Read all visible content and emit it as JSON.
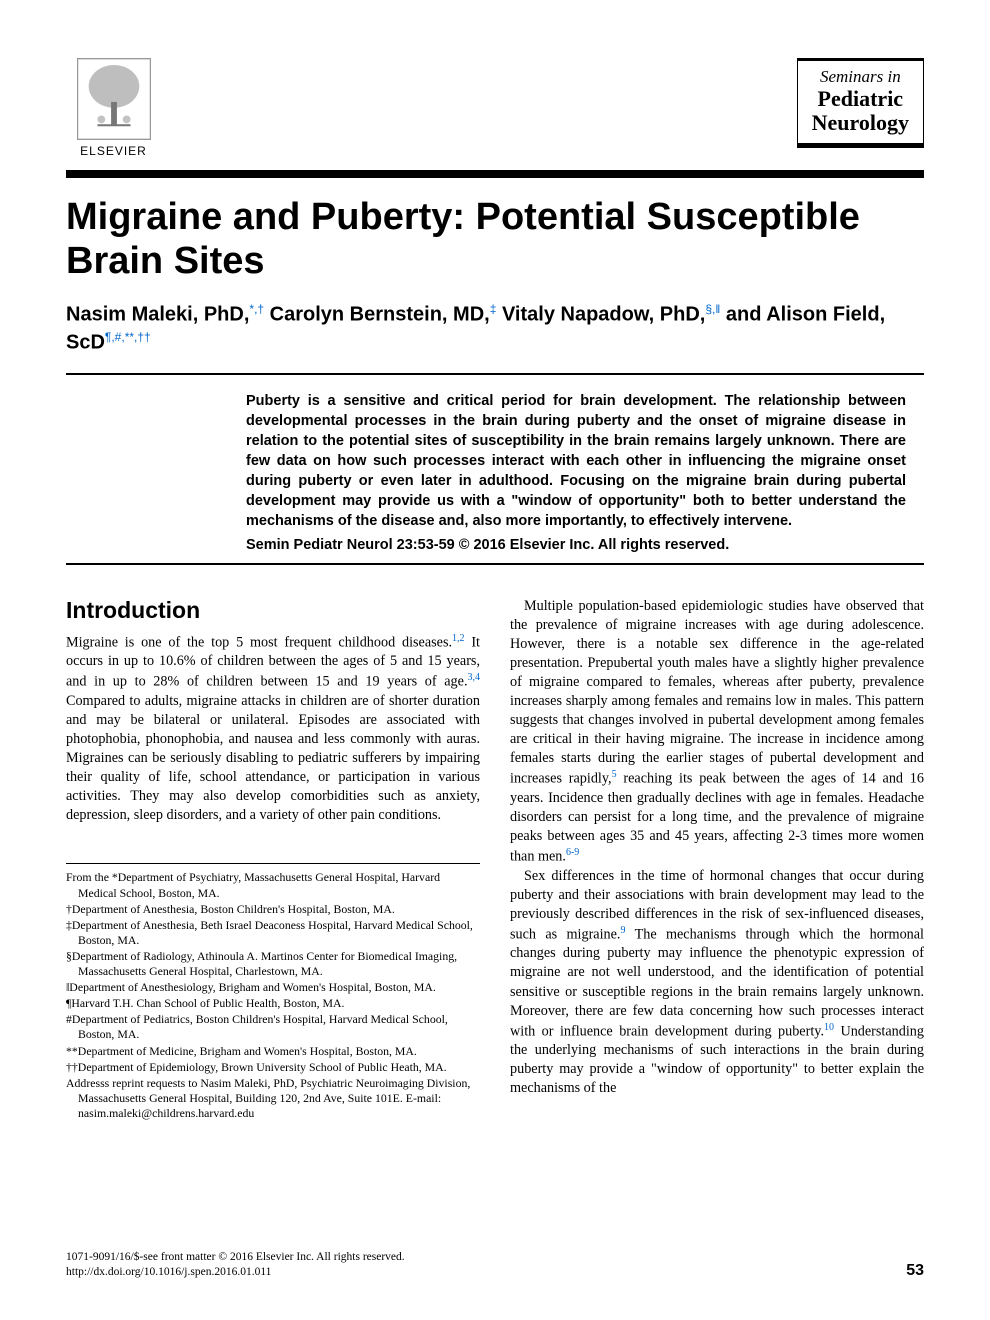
{
  "header": {
    "publisher": "ELSEVIER",
    "journal_line1": "Seminars in",
    "journal_line2": "Pediatric",
    "journal_line3": "Neurology"
  },
  "title": "Migraine and Puberty: Potential Susceptible Brain Sites",
  "authors_html": "Nasim Maleki, PhD,<sup>*,†</sup> Carolyn Bernstein, MD,<sup>‡</sup> Vitaly Napadow, PhD,<sup>§,‖</sup> and Alison Field, ScD<sup>¶,#,**,††</sup>",
  "abstract": "Puberty is a sensitive and critical period for brain development. The relationship between developmental processes in the brain during puberty and the onset of migraine disease in relation to the potential sites of susceptibility in the brain remains largely unknown. There are few data on how such processes interact with each other in influencing the migraine onset during puberty or even later in adulthood. Focusing on the migraine brain during pubertal development may provide us with a \"window of opportunity\" both to better understand the mechanisms of the disease and, also more importantly, to effectively intervene.",
  "citation": "Semin Pediatr Neurol 23:53-59 © 2016 Elsevier Inc. All rights reserved.",
  "section_heading": "Introduction",
  "col1_p1_a": "Migraine is one of the top 5 most frequent childhood diseases.",
  "col1_p1_refs1": "1,2",
  "col1_p1_b": " It occurs in up to 10.6% of children between the ages of 5 and 15 years, and in up to 28% of children between 15 and 19 years of age.",
  "col1_p1_refs2": "3,4",
  "col1_p1_c": " Compared to adults, migraine attacks in children are of shorter duration and may be bilateral or unilateral. Episodes are associated with photophobia, phonophobia, and nausea and less commonly with auras. Migraines can be seriously disabling to pediatric sufferers by impairing their quality of life, school attendance, or participation in various activities. They may also develop comorbidities such as anxiety, depression, sleep disorders, and a variety of other pain conditions.",
  "col2_p1_a": "Multiple population-based epidemiologic studies have observed that the prevalence of migraine increases with age during adolescence. However, there is a notable sex difference in the age-related presentation. Prepubertal youth males have a slightly higher prevalence of migraine compared to females, whereas after puberty, prevalence increases sharply among females and remains low in males. This pattern suggests that changes involved in pubertal development among females are critical in their having migraine. The increase in incidence among females starts during the earlier stages of pubertal development and increases rapidly,",
  "col2_p1_ref1": "5",
  "col2_p1_b": " reaching its peak between the ages of 14 and 16 years. Incidence then gradually declines with age in females. Headache disorders can persist for a long time, and the prevalence of migraine peaks between ages 35 and 45 years, affecting 2-3 times more women than men.",
  "col2_p1_ref2": "6-9",
  "col2_p2_a": "Sex differences in the time of hormonal changes that occur during puberty and their associations with brain development may lead to the previously described differences in the risk of sex-influenced diseases, such as migraine.",
  "col2_p2_ref1": "9",
  "col2_p2_b": " The mechanisms through which the hormonal changes during puberty may influence the phenotypic expression of migraine are not well understood, and the identification of potential sensitive or susceptible regions in the brain remains largely unknown. Moreover, there are few data concerning how such processes interact with or influence brain development during puberty.",
  "col2_p2_ref2": "10",
  "col2_p2_c": " Understanding the underlying mechanisms of such interactions in the brain during puberty may provide a \"window of opportunity\" to better explain the mechanisms of the",
  "affiliations": [
    "From the *Department of Psychiatry, Massachusetts General Hospital, Harvard Medical School, Boston, MA.",
    "†Department of Anesthesia, Boston Children's Hospital, Boston, MA.",
    "‡Department of Anesthesia, Beth Israel Deaconess Hospital, Harvard Medical School, Boston, MA.",
    "§Department of Radiology, Athinoula A. Martinos Center for Biomedical Imaging, Massachusetts General Hospital, Charlestown, MA.",
    "‖Department of Anesthesiology, Brigham and Women's Hospital, Boston, MA.",
    "¶Harvard T.H. Chan School of Public Health, Boston, MA.",
    "#Department of Pediatrics, Boston Children's Hospital, Harvard Medical School, Boston, MA.",
    "**Department of Medicine, Brigham and Women's Hospital, Boston, MA.",
    "††Department of Epidemiology, Brown University School of Public Heath, MA.",
    "Addresss reprint requests to Nasim Maleki, PhD, Psychiatric Neuroimaging Division, Massachusetts General Hospital, Building 120, 2nd Ave, Suite 101E. E-mail: nasim.maleki@childrens.harvard.edu"
  ],
  "footer": {
    "copyright": "1071-9091/16/$-see front matter © 2016 Elsevier Inc. All rights reserved.",
    "doi": "http://dx.doi.org/10.1016/j.spen.2016.01.011",
    "page": "53"
  },
  "colors": {
    "text": "#000000",
    "link": "#0066cc",
    "background": "#ffffff",
    "logo_border": "#999999"
  },
  "typography": {
    "title_fontsize": 38,
    "authors_fontsize": 20,
    "abstract_fontsize": 14.5,
    "body_fontsize": 14.2,
    "heading_fontsize": 23,
    "affil_fontsize": 11.8,
    "footer_fontsize": 11.5
  }
}
